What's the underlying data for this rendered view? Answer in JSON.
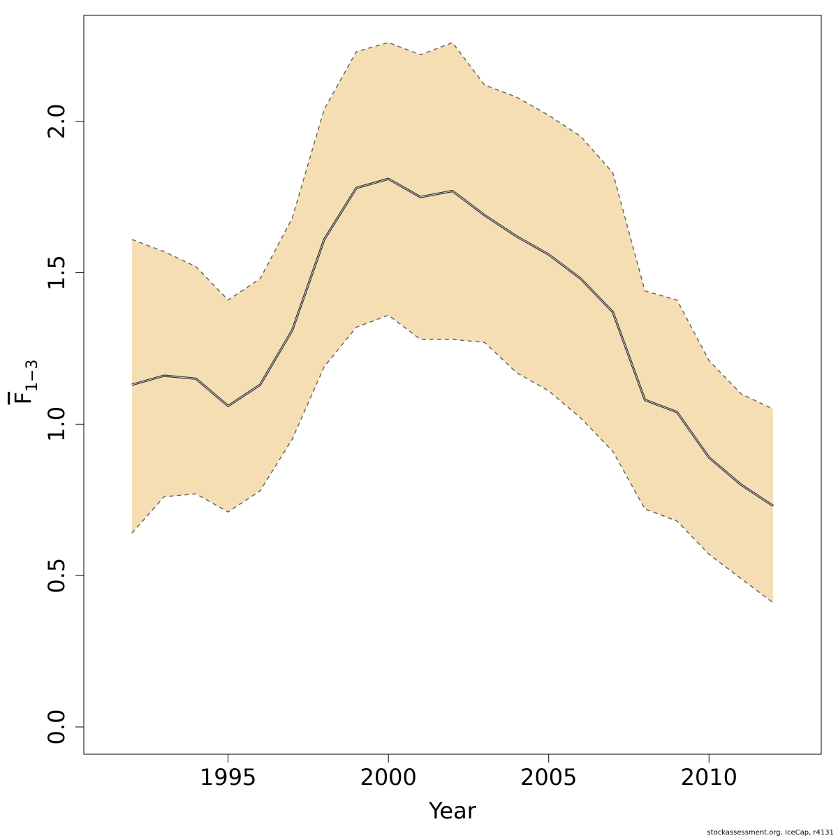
{
  "chart_data": {
    "type": "area",
    "xlabel": "Year",
    "ylabel": {
      "main": "F",
      "subscript": "1−3",
      "overbar": true
    },
    "xlim": [
      1990.5,
      2013.5
    ],
    "ylim": [
      -0.09,
      2.35
    ],
    "x_ticks": [
      1995,
      2000,
      2005,
      2010
    ],
    "x_tick_labels": [
      "1995",
      "2000",
      "2005",
      "2010"
    ],
    "y_ticks": [
      0.0,
      0.5,
      1.0,
      1.5,
      2.0
    ],
    "y_tick_labels": [
      "0.0",
      "0.5",
      "1.0",
      "1.5",
      "2.0"
    ],
    "grid": false,
    "x": [
      1992,
      1993,
      1994,
      1995,
      1996,
      1997,
      1998,
      1999,
      2000,
      2001,
      2002,
      2003,
      2004,
      2005,
      2006,
      2007,
      2008,
      2009,
      2010,
      2011,
      2012
    ],
    "series": [
      {
        "role": "estimate",
        "values": [
          1.13,
          1.16,
          1.15,
          1.06,
          1.13,
          1.31,
          1.61,
          1.78,
          1.81,
          1.75,
          1.77,
          1.69,
          1.62,
          1.56,
          1.48,
          1.37,
          1.08,
          1.04,
          0.89,
          0.8,
          0.73
        ]
      },
      {
        "role": "upper_bound",
        "values": [
          1.61,
          1.57,
          1.52,
          1.41,
          1.48,
          1.68,
          2.04,
          2.23,
          2.26,
          2.22,
          2.26,
          2.12,
          2.08,
          2.02,
          1.95,
          1.83,
          1.44,
          1.41,
          1.21,
          1.1,
          1.05
        ]
      },
      {
        "role": "lower_bound",
        "values": [
          0.64,
          0.76,
          0.77,
          0.71,
          0.78,
          0.95,
          1.19,
          1.32,
          1.36,
          1.28,
          1.28,
          1.27,
          1.17,
          1.11,
          1.02,
          0.91,
          0.72,
          0.68,
          0.57,
          0.49,
          0.41
        ]
      }
    ],
    "colors": {
      "band_fill": "#F5DEB3",
      "line": "#333333",
      "bound_line": "#666666"
    }
  },
  "footer": {
    "credit": "stockassessment.org, IceCap, r4131"
  }
}
